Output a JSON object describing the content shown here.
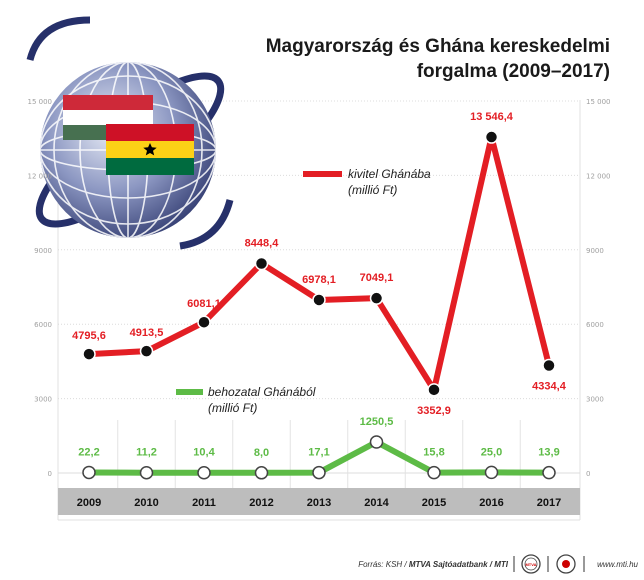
{
  "title_line1": "Magyarország és Ghána kereskedelmi",
  "title_line2": "forgalma (2009–2017)",
  "footer": {
    "source_prefix": "Forrás: KSH / ",
    "source_bold": "MTVA Sajtóadatbank / MTI",
    "website": "www.mti.hu",
    "logo_text": "MTVA"
  },
  "colors": {
    "export": "#e31e24",
    "import": "#5dbb46",
    "axis_band": "#bdbdbd",
    "grid": "#dcdcdc"
  },
  "chart_data": {
    "type": "line",
    "x": [
      "2009",
      "2010",
      "2011",
      "2012",
      "2013",
      "2014",
      "2015",
      "2016",
      "2017"
    ],
    "ylim": [
      0,
      15000
    ],
    "yticks": [
      "0",
      "3000",
      "6000",
      "9000",
      "12 000",
      "15 000"
    ],
    "grid": true,
    "series": [
      {
        "name": "kivitel Ghánába",
        "name_line2": "(millió Ft)",
        "values": [
          4795.6,
          4913.5,
          6081.1,
          8448.4,
          6978.1,
          7049.1,
          3352.9,
          13546.4,
          4334.4
        ],
        "labels": [
          "4795,6",
          "4913,5",
          "6081,1",
          "8448,4",
          "6978,1",
          "7049,1",
          "3352,9",
          "13 546,4",
          "4334,4"
        ]
      },
      {
        "name": "behozatal Ghánából",
        "name_line2": "(millió Ft)",
        "values": [
          22.2,
          11.2,
          10.4,
          8.0,
          17.1,
          1250.5,
          15.8,
          25.0,
          13.9
        ],
        "labels": [
          "22,2",
          "11,2",
          "10,4",
          "8,0",
          "17,1",
          "1250,5",
          "15,8",
          "25,0",
          "13,9"
        ]
      }
    ]
  }
}
